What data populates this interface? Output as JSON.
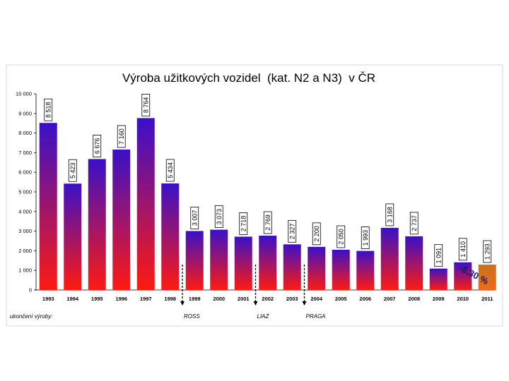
{
  "colors": {
    "bar_top": "#3a10c8",
    "bar_bottom": "#ff1a10",
    "highlight_top": "#c9711b",
    "highlight_bottom": "#f06a1a",
    "label_red": "#cc0000"
  },
  "chart_data": {
    "type": "bar",
    "title": "Výroba užitkových vozidel",
    "title_suffix": "(kat. N2 a N3)",
    "title_end": "v ČR",
    "categories": [
      "1993",
      "1994",
      "1995",
      "1996",
      "1997",
      "1998",
      "1999",
      "2000",
      "2001",
      "2002",
      "2003",
      "2004",
      "2005",
      "2006",
      "2007",
      "2008",
      "2009",
      "2010",
      "2011"
    ],
    "values": [
      8518,
      5423,
      6676,
      7160,
      8764,
      5434,
      3007,
      3073,
      2718,
      2769,
      2327,
      2200,
      2050,
      1993,
      3168,
      2737,
      1091,
      1410,
      1293
    ],
    "value_labels": [
      "8 518",
      "5 423",
      "6 676",
      "7 160",
      "8 764",
      "5 434",
      "3 007",
      "3 073",
      "2 718",
      "2 769",
      "2 327",
      "2 200",
      "2 050",
      "1 993",
      "3 168",
      "2 737",
      "1 091",
      "1 410",
      "1 293"
    ],
    "yticks": [
      0,
      1000,
      2000,
      3000,
      4000,
      5000,
      6000,
      7000,
      8000,
      9000,
      10000
    ],
    "ytick_labels": [
      "0",
      "1 000",
      "2 000",
      "3 000",
      "4 000",
      "5 000",
      "6 000",
      "7 000",
      "8 000",
      "9 000",
      "10 000"
    ],
    "ylim": [
      0,
      10000
    ],
    "grid": false,
    "highlight_category": "2011",
    "annotation_percent": "-8,30 %"
  },
  "end_of_production": {
    "label": "ukončení výroby:",
    "markers": [
      {
        "brand": "ROSS",
        "after_year": "1998"
      },
      {
        "brand": "LIAZ",
        "after_year": "2001"
      },
      {
        "brand": "PRAGA",
        "after_year": "2003"
      }
    ]
  }
}
